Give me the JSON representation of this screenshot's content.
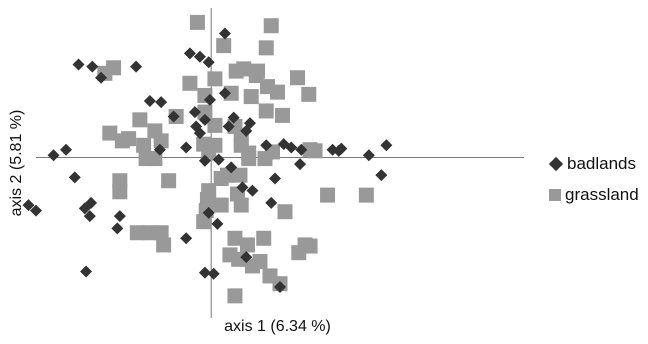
{
  "chart_data": {
    "type": "scatter",
    "title": "",
    "xlabel": "axis 1 (6.34 %)",
    "ylabel": "axis 2 (5.81 %)",
    "xlim": [
      -140,
      250
    ],
    "ylim": [
      -145,
      135
    ],
    "grid": false,
    "legend_position": "right",
    "series": [
      {
        "name": "badlands",
        "marker": "diamond",
        "color": "#333333",
        "points": [
          [
            -106,
            84
          ],
          [
            -95,
            82
          ],
          [
            -88,
            72
          ],
          [
            -60,
            82
          ],
          [
            -17,
            94
          ],
          [
            11,
            112
          ],
          [
            -9,
            91
          ],
          [
            -2,
            86
          ],
          [
            -40,
            50
          ],
          [
            -49,
            51
          ],
          [
            -30,
            37
          ],
          [
            -13,
            41
          ],
          [
            -5,
            34
          ],
          [
            -12,
            28
          ],
          [
            14,
            28
          ],
          [
            28,
            24
          ],
          [
            31,
            31
          ],
          [
            44,
            11
          ],
          [
            58,
            12
          ],
          [
            64,
            9
          ],
          [
            72,
            7
          ],
          [
            -41,
            7
          ],
          [
            -20,
            9
          ],
          [
            -116,
            7
          ],
          [
            -126,
            2
          ],
          [
            71,
            -6
          ],
          [
            97,
            7
          ],
          [
            102,
            6
          ],
          [
            104,
            8
          ],
          [
            126,
            2
          ],
          [
            140,
            11
          ],
          [
            136,
            -16
          ],
          [
            51,
            -19
          ],
          [
            -109,
            -18
          ],
          [
            -96,
            -41
          ],
          [
            -97,
            -53
          ],
          [
            -146,
            -43
          ],
          [
            -140,
            -48
          ],
          [
            -75,
            -64
          ],
          [
            -73,
            -53
          ],
          [
            -101,
            -46
          ],
          [
            -20,
            -73
          ],
          [
            48,
            -41
          ],
          [
            33,
            -30
          ],
          [
            -5,
            -104
          ],
          [
            2,
            -105
          ],
          [
            -100,
            -103
          ],
          [
            55,
            -117
          ],
          [
            16,
            -9
          ],
          [
            25,
            -27
          ],
          [
            6,
            -2
          ],
          [
            -5,
            -3
          ],
          [
            11,
            58
          ],
          [
            18,
            36
          ],
          [
            -1,
            52
          ],
          [
            -9,
            22
          ],
          [
            5,
            -60
          ],
          [
            28,
            -90
          ],
          [
            -2,
            -50
          ]
        ]
      },
      {
        "name": "grassland",
        "marker": "square",
        "color": "#999999",
        "points": [
          [
            -11,
            122
          ],
          [
            48,
            119
          ],
          [
            10,
            101
          ],
          [
            44,
            99
          ],
          [
            -78,
            81
          ],
          [
            -85,
            76
          ],
          [
            36,
            74
          ],
          [
            69,
            72
          ],
          [
            -17,
            67
          ],
          [
            3,
            71
          ],
          [
            20,
            78
          ],
          [
            26,
            80
          ],
          [
            37,
            78
          ],
          [
            45,
            64
          ],
          [
            -5,
            56
          ],
          [
            16,
            58
          ],
          [
            32,
            55
          ],
          [
            53,
            59
          ],
          [
            78,
            57
          ],
          [
            -57,
            34
          ],
          [
            -28,
            37
          ],
          [
            -5,
            41
          ],
          [
            19,
            28
          ],
          [
            44,
            42
          ],
          [
            57,
            38
          ],
          [
            3,
            29
          ],
          [
            -81,
            22
          ],
          [
            -45,
            24
          ],
          [
            -66,
            17
          ],
          [
            -71,
            15
          ],
          [
            -54,
            11
          ],
          [
            -40,
            15
          ],
          [
            -6,
            12
          ],
          [
            3,
            11
          ],
          [
            24,
            16
          ],
          [
            -2,
            4
          ],
          [
            24,
            11
          ],
          [
            30,
            4
          ],
          [
            49,
            5
          ],
          [
            79,
            7
          ],
          [
            83,
            6
          ],
          [
            -52,
            -1
          ],
          [
            -45,
            -1
          ],
          [
            30,
            -1
          ],
          [
            43,
            -1
          ],
          [
            13,
            -16
          ],
          [
            8,
            -19
          ],
          [
            23,
            -16
          ],
          [
            -73,
            -21
          ],
          [
            -73,
            -31
          ],
          [
            -34,
            -21
          ],
          [
            -3,
            -38
          ],
          [
            -4,
            -48
          ],
          [
            8,
            -43
          ],
          [
            21,
            -33
          ],
          [
            93,
            -34
          ],
          [
            124,
            -34
          ],
          [
            59,
            -49
          ],
          [
            -6,
            -58
          ],
          [
            -59,
            -68
          ],
          [
            -49,
            -68
          ],
          [
            -40,
            -68
          ],
          [
            -38,
            -79
          ],
          [
            19,
            -73
          ],
          [
            29,
            -79
          ],
          [
            42,
            -73
          ],
          [
            75,
            -79
          ],
          [
            79,
            -80
          ],
          [
            15,
            -88
          ],
          [
            22,
            -92
          ],
          [
            33,
            -98
          ],
          [
            39,
            -94
          ],
          [
            19,
            -125
          ],
          [
            55,
            -114
          ],
          [
            47,
            -107
          ],
          [
            70,
            -86
          ],
          [
            24,
            -43
          ],
          [
            -2,
            -30
          ]
        ]
      }
    ]
  }
}
